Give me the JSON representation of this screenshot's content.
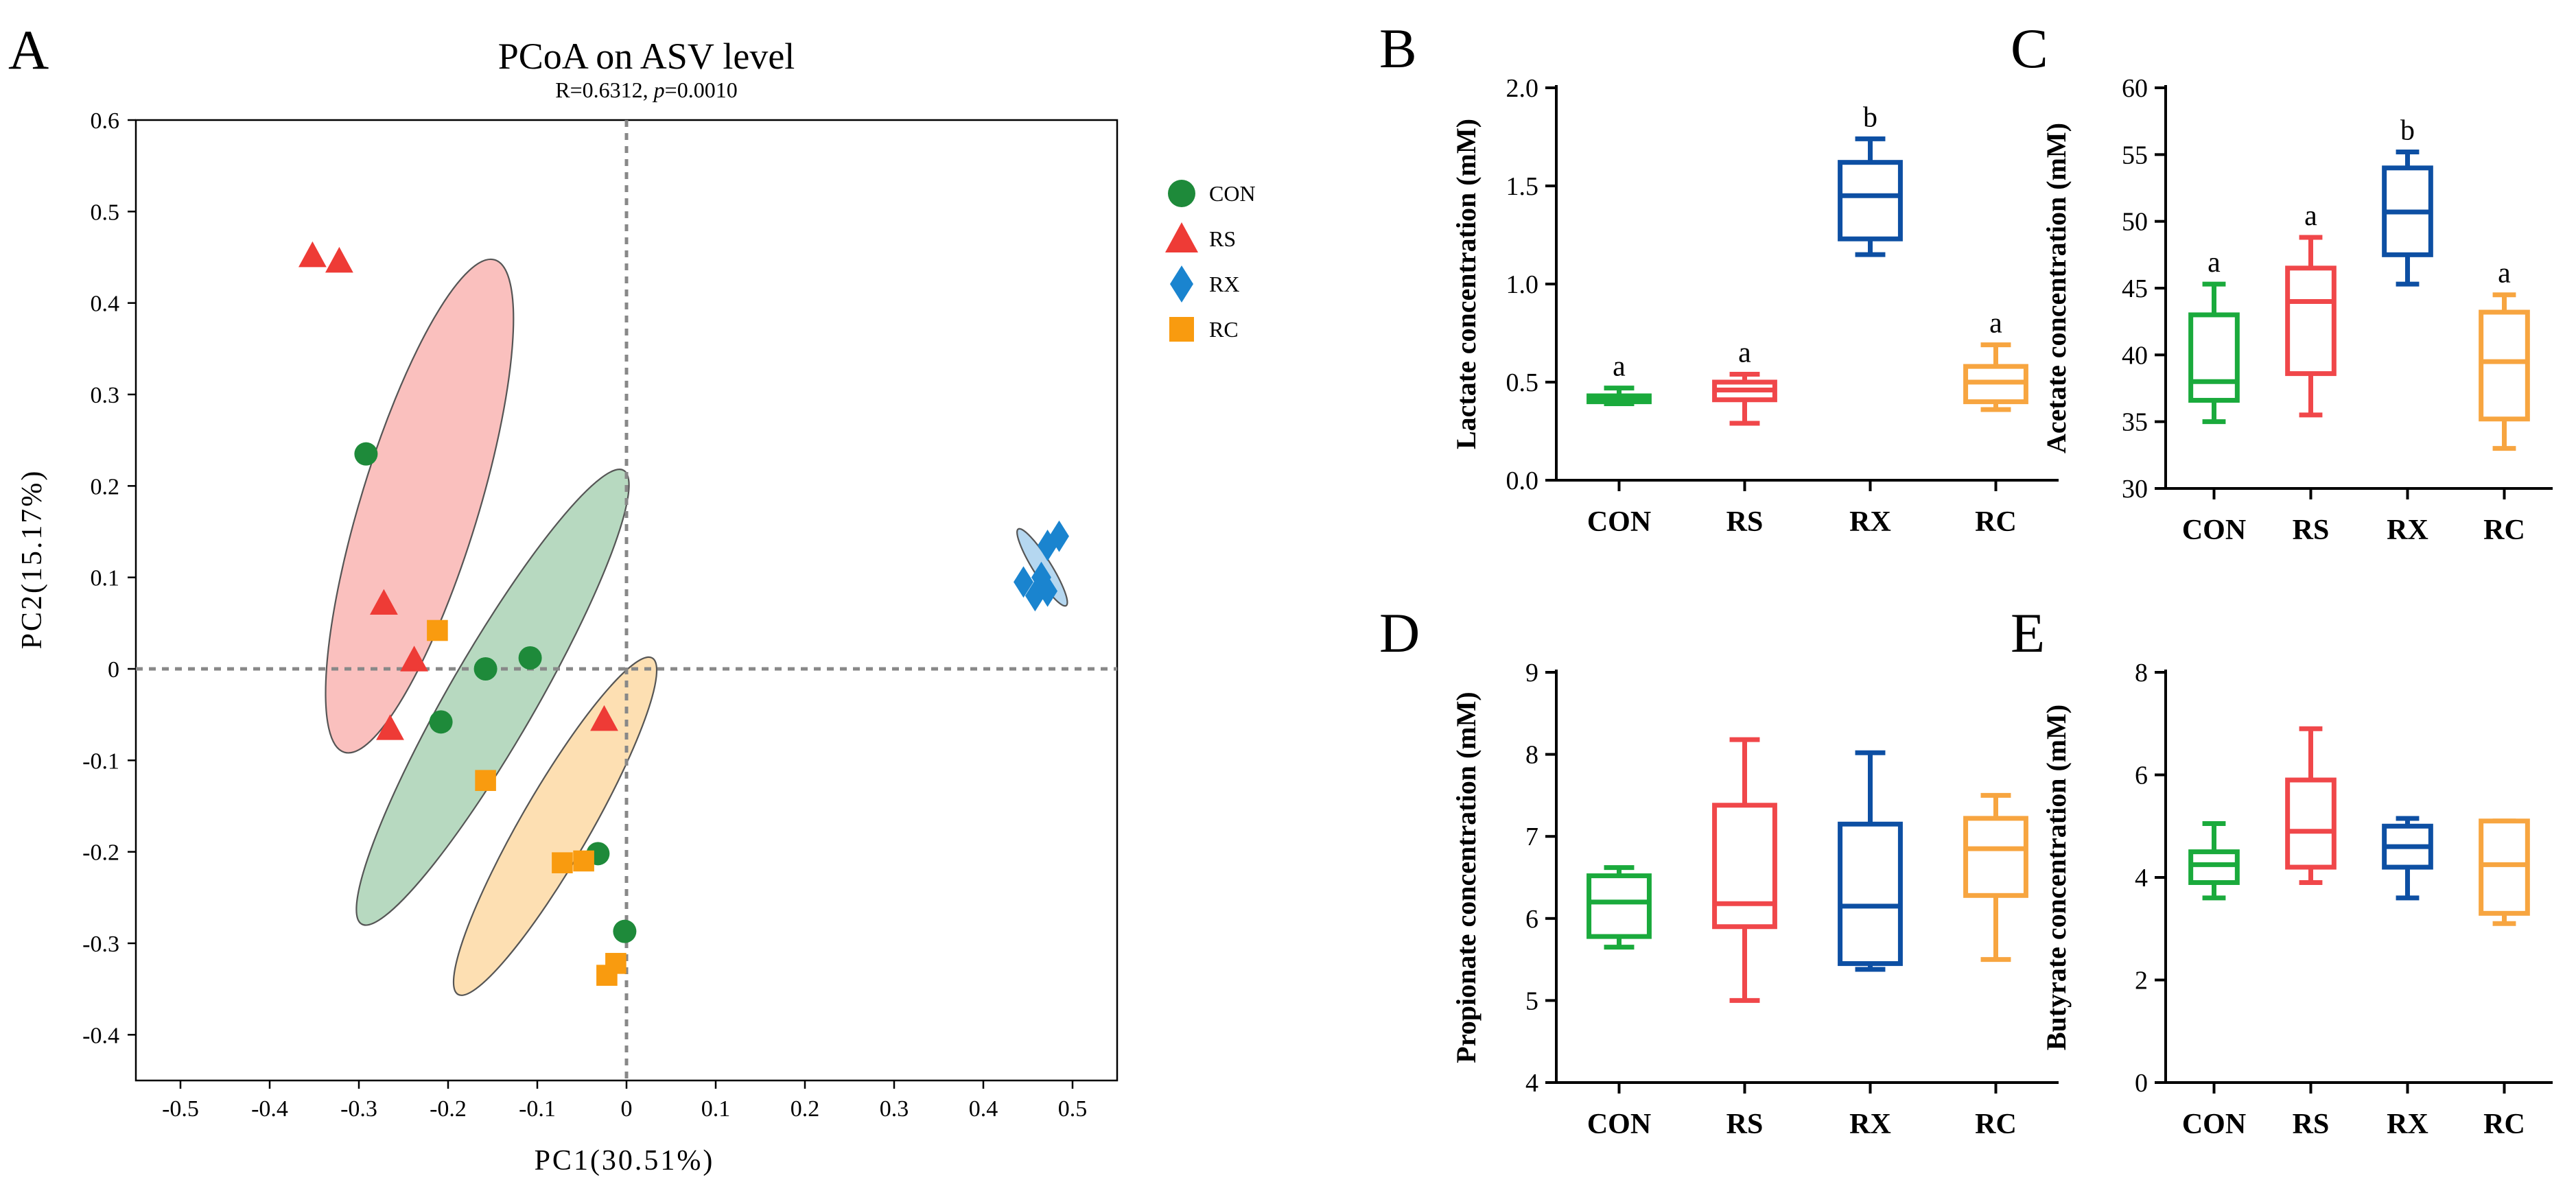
{
  "colors": {
    "CON": "#1aaa3c",
    "RS": "#f0474a",
    "RX": "#0d4fa3",
    "RC": "#f7a540",
    "pcoa_CON": "#1e8a3a",
    "pcoa_RS": "#ee3b36",
    "pcoa_RX": "#1a84cf",
    "pcoa_RC": "#f99b0f"
  },
  "chart_data": [
    {
      "panel": "A",
      "type": "scatter",
      "title": "PCoA on ASV level",
      "subtitle_r": "R=0.6312, ",
      "subtitle_p_label": "p",
      "subtitle_p_value": "=0.0010",
      "xlabel": "PC1(30.51%)",
      "ylabel": "PC2(15.17%)",
      "xlim": [
        -0.55,
        0.55
      ],
      "ylim": [
        -0.45,
        0.6
      ],
      "xticks": [
        -0.5,
        -0.4,
        -0.3,
        -0.2,
        -0.1,
        0,
        0.1,
        0.2,
        0.3,
        0.4,
        0.5
      ],
      "xtick_labels": [
        "-0.5",
        "-0.4",
        "-0.3",
        "-0.2",
        "-0.1",
        "0",
        "0.1",
        "0.2",
        "0.3",
        "0.4",
        "0.5"
      ],
      "yticks": [
        -0.4,
        -0.3,
        -0.2,
        -0.1,
        0,
        0.1,
        0.2,
        0.3,
        0.4,
        0.5,
        0.6
      ],
      "ytick_labels": [
        "-0.4",
        "-0.3",
        "-0.2",
        "-0.1",
        "0",
        "0.1",
        "0.2",
        "0.3",
        "0.4",
        "0.5",
        "0.6"
      ],
      "legend": [
        "CON",
        "RS",
        "RX",
        "RC"
      ],
      "legend_position": "top-right",
      "series": [
        {
          "name": "CON",
          "marker": "circle",
          "points": [
            [
              -0.292,
              0.235
            ],
            [
              -0.158,
              0.0
            ],
            [
              -0.108,
              0.012
            ],
            [
              -0.208,
              -0.058
            ],
            [
              -0.032,
              -0.202
            ],
            [
              -0.002,
              -0.287
            ]
          ]
        },
        {
          "name": "RS",
          "marker": "triangle",
          "points": [
            [
              -0.352,
              0.452
            ],
            [
              -0.322,
              0.446
            ],
            [
              -0.272,
              0.072
            ],
            [
              -0.238,
              0.01
            ],
            [
              -0.265,
              -0.065
            ],
            [
              -0.025,
              -0.055
            ]
          ]
        },
        {
          "name": "RX",
          "marker": "diamond",
          "points": [
            [
              0.445,
              0.095
            ],
            [
              0.458,
              0.08
            ],
            [
              0.465,
              0.1
            ],
            [
              0.472,
              0.085
            ],
            [
              0.472,
              0.135
            ],
            [
              0.485,
              0.145
            ]
          ]
        },
        {
          "name": "RC",
          "marker": "square",
          "points": [
            [
              -0.212,
              0.042
            ],
            [
              -0.158,
              -0.122
            ],
            [
              -0.072,
              -0.212
            ],
            [
              -0.048,
              -0.21
            ],
            [
              -0.012,
              -0.322
            ],
            [
              -0.022,
              -0.335
            ]
          ]
        }
      ],
      "ellipses": [
        {
          "name": "RS",
          "cx": -0.232,
          "cy": 0.178,
          "rx": 0.285,
          "ry": 0.065,
          "angle": -73
        },
        {
          "name": "CON",
          "cx": -0.15,
          "cy": -0.031,
          "rx": 0.29,
          "ry": 0.048,
          "angle": -60
        },
        {
          "name": "RC",
          "cx": -0.08,
          "cy": -0.172,
          "rx": 0.215,
          "ry": 0.038,
          "angle": -60
        },
        {
          "name": "RX",
          "cx": 0.466,
          "cy": 0.111,
          "rx": 0.05,
          "ry": 0.01,
          "angle": 58
        }
      ]
    },
    {
      "panel": "B",
      "type": "boxplot",
      "ylabel": "Lactate concentration (mM)",
      "ylim": [
        0,
        2.0
      ],
      "yticks": [
        0,
        0.5,
        1.0,
        1.5,
        2.0
      ],
      "ytick_labels": [
        "0.0",
        "0.5",
        "1.0",
        "1.5",
        "2.0"
      ],
      "categories": [
        "CON",
        "RS",
        "RX",
        "RC"
      ],
      "boxes": [
        {
          "min": 0.39,
          "q1": 0.4,
          "median": 0.41,
          "q3": 0.43,
          "max": 0.47
        },
        {
          "min": 0.29,
          "q1": 0.41,
          "median": 0.46,
          "q3": 0.5,
          "max": 0.54
        },
        {
          "min": 1.15,
          "q1": 1.23,
          "median": 1.45,
          "q3": 1.62,
          "max": 1.74
        },
        {
          "min": 0.36,
          "q1": 0.4,
          "median": 0.5,
          "q3": 0.58,
          "max": 0.69
        }
      ],
      "sig_letters": [
        "a",
        "a",
        "b",
        "a"
      ]
    },
    {
      "panel": "C",
      "type": "boxplot",
      "ylabel": "Acetate concentration (mM)",
      "ylim": [
        30,
        60
      ],
      "yticks": [
        30,
        35,
        40,
        45,
        50,
        55,
        60
      ],
      "ytick_labels": [
        "30",
        "35",
        "40",
        "45",
        "50",
        "55",
        "60"
      ],
      "categories": [
        "CON",
        "RS",
        "RX",
        "RC"
      ],
      "boxes": [
        {
          "min": 35.0,
          "q1": 36.6,
          "median": 38.0,
          "q3": 43.0,
          "max": 45.3
        },
        {
          "min": 35.5,
          "q1": 38.6,
          "median": 44.0,
          "q3": 46.5,
          "max": 48.8
        },
        {
          "min": 45.3,
          "q1": 47.5,
          "median": 50.7,
          "q3": 54.0,
          "max": 55.2
        },
        {
          "min": 33.0,
          "q1": 35.2,
          "median": 39.5,
          "q3": 43.2,
          "max": 44.5
        }
      ],
      "sig_letters": [
        "a",
        "a",
        "b",
        "a"
      ]
    },
    {
      "panel": "D",
      "type": "boxplot",
      "ylabel": "Propionate concentration (mM)",
      "ylim": [
        4,
        9
      ],
      "yticks": [
        4,
        5,
        6,
        7,
        8,
        9
      ],
      "ytick_labels": [
        "4",
        "5",
        "6",
        "7",
        "8",
        "9"
      ],
      "categories": [
        "CON",
        "RS",
        "RX",
        "RC"
      ],
      "boxes": [
        {
          "min": 5.65,
          "q1": 5.78,
          "median": 6.2,
          "q3": 6.52,
          "max": 6.62
        },
        {
          "min": 5.0,
          "q1": 5.9,
          "median": 6.18,
          "q3": 7.38,
          "max": 8.18
        },
        {
          "min": 5.38,
          "q1": 5.45,
          "median": 6.15,
          "q3": 7.15,
          "max": 8.02
        },
        {
          "min": 5.5,
          "q1": 6.28,
          "median": 6.85,
          "q3": 7.22,
          "max": 7.5
        }
      ],
      "sig_letters": [
        "",
        "",
        "",
        ""
      ]
    },
    {
      "panel": "E",
      "type": "boxplot",
      "ylabel": "Butyrate concentration (mM)",
      "ylim": [
        0,
        8
      ],
      "yticks": [
        0,
        2,
        4,
        6,
        8
      ],
      "ytick_labels": [
        "0",
        "2",
        "4",
        "6",
        "8"
      ],
      "categories": [
        "CON",
        "RS",
        "RX",
        "RC"
      ],
      "boxes": [
        {
          "min": 3.6,
          "q1": 3.9,
          "median": 4.25,
          "q3": 4.5,
          "max": 5.05
        },
        {
          "min": 3.9,
          "q1": 4.2,
          "median": 4.9,
          "q3": 5.9,
          "max": 6.9
        },
        {
          "min": 3.6,
          "q1": 4.2,
          "median": 4.6,
          "q3": 5.0,
          "max": 5.15
        },
        {
          "min": 3.1,
          "q1": 3.3,
          "median": 4.25,
          "q3": 5.1,
          "max": 5.1
        }
      ],
      "sig_letters": [
        "",
        "",
        "",
        ""
      ]
    }
  ]
}
